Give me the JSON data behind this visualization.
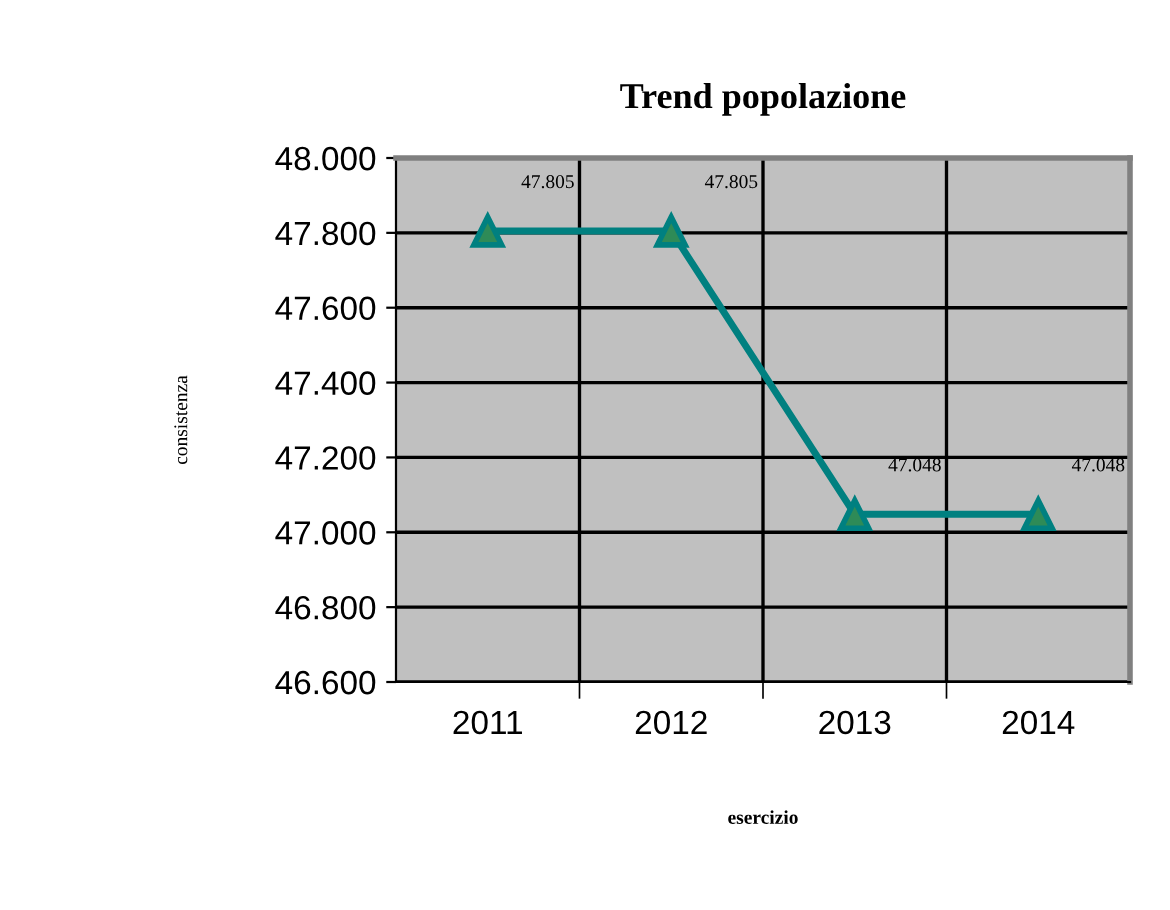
{
  "chart_data": {
    "type": "line",
    "title": "Trend popolazione",
    "xlabel": "esercizio",
    "ylabel": "consistenza",
    "categories": [
      "2011",
      "2012",
      "2013",
      "2014"
    ],
    "series": [
      {
        "color": "#008080",
        "values": [
          47805,
          47805,
          47048,
          47048
        ],
        "value_labels": [
          "47.805",
          "47.805",
          "47.048",
          "47.048"
        ]
      }
    ],
    "marker": "triangle",
    "ylim": [
      46600,
      48000
    ],
    "yticks": [
      {
        "value": 46600,
        "label": "46.600"
      },
      {
        "value": 46800,
        "label": "46.800"
      },
      {
        "value": 47000,
        "label": "47.000"
      },
      {
        "value": 47200,
        "label": "47.200"
      },
      {
        "value": 47400,
        "label": "47.400"
      },
      {
        "value": 47600,
        "label": "47.600"
      },
      {
        "value": 47800,
        "label": "47.800"
      },
      {
        "value": 48000,
        "label": "48.000"
      }
    ],
    "grid": true
  }
}
